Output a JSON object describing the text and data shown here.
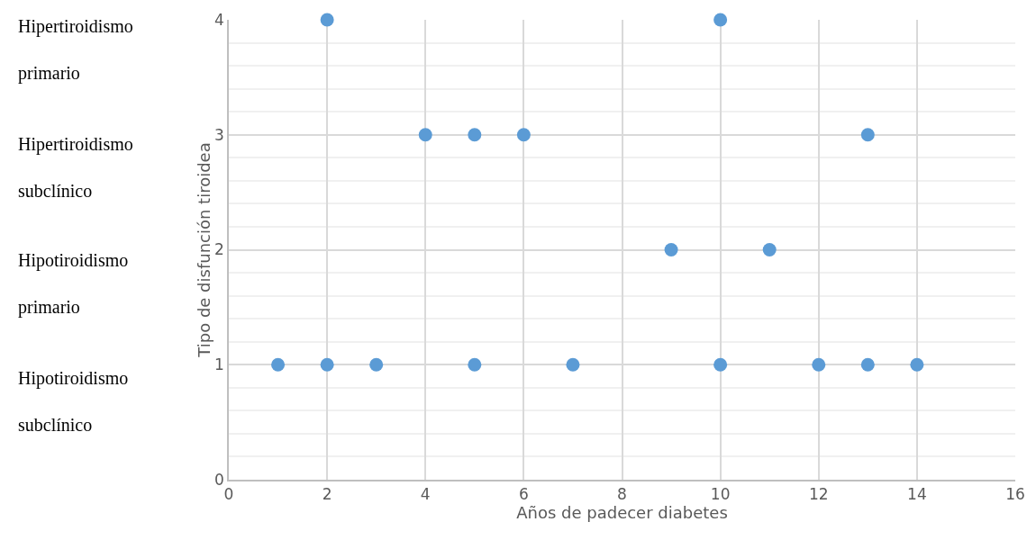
{
  "chart_data": {
    "type": "scatter",
    "xlabel": "Años de padecer diabetes",
    "ylabel": "Tipo de disfunción tiroidea",
    "x": [
      2,
      10,
      4,
      5,
      6,
      13,
      9,
      11,
      1,
      2,
      3,
      5,
      7,
      10,
      12,
      13,
      14
    ],
    "series": [
      {
        "color": "#5b9bd5",
        "values": [
          4,
          4,
          3,
          3,
          3,
          3,
          2,
          2,
          1,
          1,
          1,
          1,
          1,
          1,
          1,
          1,
          1
        ]
      }
    ],
    "xlim": [
      0,
      16
    ],
    "xticks": [
      0,
      2,
      4,
      6,
      8,
      10,
      12,
      14,
      16
    ],
    "ylim": [
      0,
      4
    ],
    "yticks": [
      0,
      1,
      2,
      3,
      4
    ],
    "grid": true,
    "marker": "circle",
    "legend": false,
    "annotations": [
      "Hipertiroidismo primario",
      "Hipertiroidismo subclínico",
      "Hipotiroidismo primario",
      "Hipotiroidismo subclínico"
    ]
  }
}
